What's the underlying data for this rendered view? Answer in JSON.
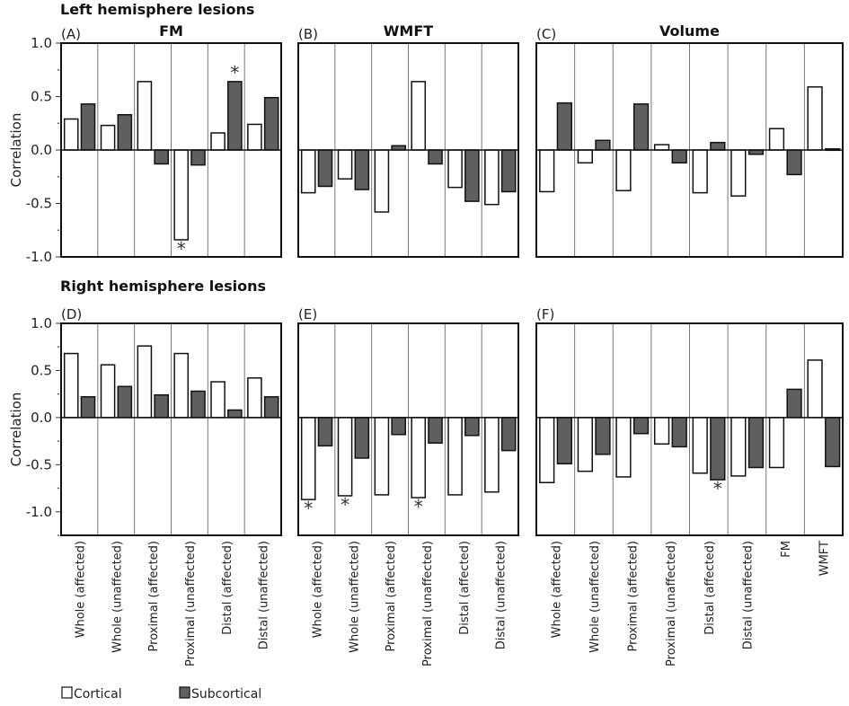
{
  "chart_data": {
    "type": "bar",
    "legend": {
      "entries": [
        "Cortical",
        "Subcortical"
      ],
      "placement": "bottom-left"
    },
    "colors": {
      "Cortical": "#ffffff",
      "Subcortical": "#5f5f5f",
      "axis": "#111111",
      "divider": "#777777"
    },
    "ylabel": "Correlation",
    "rows": [
      {
        "title": "Left hemisphere lesions",
        "ylim": [
          -1.0,
          1.0
        ],
        "yticks": [
          "1.0",
          "0.5",
          "0.0",
          "-0.5",
          "-1.0"
        ],
        "ytick_values": [
          1.0,
          0.5,
          0.0,
          -0.5,
          -1.0
        ]
      },
      {
        "title": "Right hemisphere lesions",
        "ylim": [
          -1.25,
          1.0
        ],
        "yticks": [
          "1.0",
          "0.5",
          "0.0",
          "-0.5",
          "-1.0"
        ],
        "ytick_values": [
          1.0,
          0.5,
          0.0,
          -0.5,
          -1.0
        ]
      }
    ],
    "panels": [
      {
        "label": "(A)",
        "title": "FM",
        "row": 0,
        "categories": [
          "Whole (affected)",
          "Whole (unaffected)",
          "Proximal (affected)",
          "Proximal (unaffected)",
          "Distal (affected)",
          "Distal (unaffected)"
        ],
        "series": [
          {
            "name": "Cortical",
            "values": [
              0.29,
              0.23,
              0.64,
              -0.84,
              0.16,
              0.24
            ],
            "significant": [
              false,
              false,
              false,
              true,
              false,
              false
            ]
          },
          {
            "name": "Subcortical",
            "values": [
              0.43,
              0.33,
              -0.13,
              -0.14,
              0.64,
              0.49
            ],
            "significant": [
              false,
              false,
              false,
              false,
              true,
              false
            ]
          }
        ]
      },
      {
        "label": "(B)",
        "title": "WMFT",
        "row": 0,
        "categories": [
          "Whole (affected)",
          "Whole (unaffected)",
          "Proximal (affected)",
          "Proximal (unaffected)",
          "Distal (affected)",
          "Distal (unaffected)"
        ],
        "series": [
          {
            "name": "Cortical",
            "values": [
              -0.4,
              -0.27,
              -0.58,
              0.64,
              -0.35,
              -0.51
            ],
            "significant": [
              false,
              false,
              false,
              false,
              false,
              false
            ]
          },
          {
            "name": "Subcortical",
            "values": [
              -0.34,
              -0.37,
              0.04,
              -0.13,
              -0.48,
              -0.39
            ],
            "significant": [
              false,
              false,
              false,
              false,
              false,
              false
            ]
          }
        ]
      },
      {
        "label": "(C)",
        "title": "Volume",
        "row": 0,
        "categories": [
          "Whole (affected)",
          "Whole (unaffected)",
          "Proximal (affected)",
          "Proximal (unaffected)",
          "Distal (affected)",
          "Distal (unaffected)",
          "FM",
          "WMFT"
        ],
        "series": [
          {
            "name": "Cortical",
            "values": [
              -0.39,
              -0.12,
              -0.38,
              0.05,
              -0.4,
              -0.43,
              0.2,
              0.59
            ],
            "significant": [
              false,
              false,
              false,
              false,
              false,
              false,
              false,
              false
            ]
          },
          {
            "name": "Subcortical",
            "values": [
              0.44,
              0.09,
              0.43,
              -0.12,
              0.07,
              -0.04,
              -0.23,
              0.01
            ],
            "significant": [
              false,
              false,
              false,
              false,
              false,
              false,
              false,
              false
            ]
          }
        ]
      },
      {
        "label": "(D)",
        "title": "",
        "row": 1,
        "categories": [
          "Whole (affected)",
          "Whole (unaffected)",
          "Proximal (affected)",
          "Proximal (unaffected)",
          "Distal (affected)",
          "Distal (unaffected)"
        ],
        "series": [
          {
            "name": "Cortical",
            "values": [
              0.68,
              0.56,
              0.76,
              0.68,
              0.38,
              0.42
            ],
            "significant": [
              false,
              false,
              false,
              false,
              false,
              false
            ]
          },
          {
            "name": "Subcortical",
            "values": [
              0.22,
              0.33,
              0.24,
              0.28,
              0.08,
              0.22
            ],
            "significant": [
              false,
              false,
              false,
              false,
              false,
              false
            ]
          }
        ]
      },
      {
        "label": "(E)",
        "title": "",
        "row": 1,
        "categories": [
          "Whole (affected)",
          "Whole (unaffected)",
          "Proximal (affected)",
          "Proximal (unaffected)",
          "Distal (affected)",
          "Distal (unaffected)"
        ],
        "series": [
          {
            "name": "Cortical",
            "values": [
              -0.87,
              -0.83,
              -0.82,
              -0.85,
              -0.82,
              -0.79
            ],
            "significant": [
              true,
              true,
              false,
              true,
              false,
              false
            ]
          },
          {
            "name": "Subcortical",
            "values": [
              -0.3,
              -0.43,
              -0.18,
              -0.27,
              -0.19,
              -0.35
            ],
            "significant": [
              false,
              false,
              false,
              false,
              false,
              false
            ]
          }
        ]
      },
      {
        "label": "(F)",
        "title": "",
        "row": 1,
        "categories": [
          "Whole (affected)",
          "Whole (unaffected)",
          "Proximal (affected)",
          "Proximal (unaffected)",
          "Distal (affected)",
          "Distal (unaffected)",
          "FM",
          "WMFT"
        ],
        "series": [
          {
            "name": "Cortical",
            "values": [
              -0.69,
              -0.57,
              -0.63,
              -0.28,
              -0.59,
              -0.62,
              -0.53,
              0.61
            ],
            "significant": [
              false,
              false,
              false,
              false,
              false,
              false,
              false,
              false
            ]
          },
          {
            "name": "Subcortical",
            "values": [
              -0.49,
              -0.39,
              -0.17,
              -0.31,
              -0.66,
              -0.53,
              0.3,
              -0.52
            ],
            "significant": [
              false,
              false,
              false,
              false,
              true,
              false,
              false,
              false
            ]
          }
        ]
      }
    ],
    "significance_marker": "*"
  }
}
